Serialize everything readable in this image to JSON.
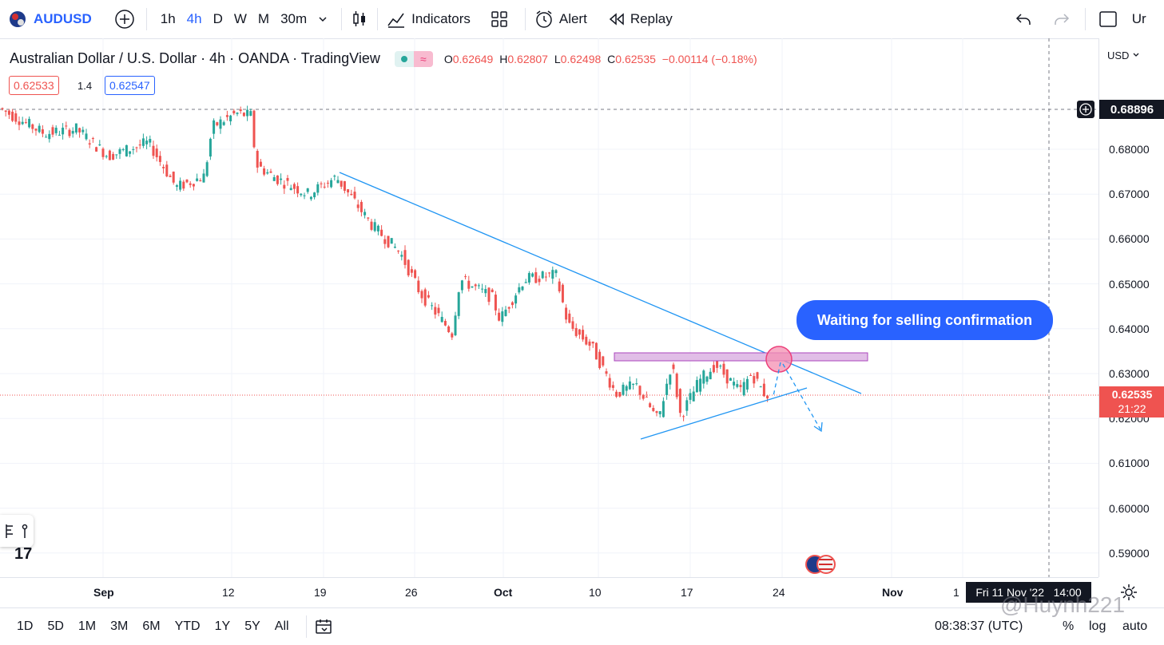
{
  "toolbar": {
    "symbol": "AUDUSD",
    "intervals": [
      "1h",
      "4h",
      "D",
      "W",
      "M",
      "30m"
    ],
    "active_interval": "4h",
    "indicators_label": "Indicators",
    "alert_label": "Alert",
    "replay_label": "Replay",
    "cut_label": "Ur"
  },
  "legend": {
    "title": "Australian Dollar / U.S. Dollar · 4h · OANDA · TradingView",
    "open_label": "O",
    "open": "0.62649",
    "high_label": "H",
    "high": "0.62807",
    "low_label": "L",
    "low": "0.62498",
    "close_label": "C",
    "close": "0.62535",
    "change": "−0.00114 (−0.18%)"
  },
  "quote": {
    "bid": "0.62533",
    "spread": "1.4",
    "ask": "0.62547"
  },
  "price_axis": {
    "currency": "USD",
    "ticks": [
      "0.68000",
      "0.67000",
      "0.66000",
      "0.65000",
      "0.64000",
      "0.63000",
      "0.62000",
      "0.61000",
      "0.60000",
      "0.59000"
    ],
    "crosshair_price": "0.68896",
    "last_price": "0.62535",
    "countdown": "21:22"
  },
  "time_axis": {
    "labels": [
      "Sep",
      "12",
      "19",
      "26",
      "Oct",
      "10",
      "17",
      "24",
      "Nov",
      "1"
    ],
    "crosshair_time": "Fri 11 Nov '22   14:00"
  },
  "annotation": {
    "callout": "Waiting for selling confirmation"
  },
  "bottombar": {
    "ranges": [
      "1D",
      "5D",
      "1M",
      "3M",
      "6M",
      "YTD",
      "1Y",
      "5Y",
      "All"
    ],
    "clock": "08:38:37 (UTC)",
    "percent": "%",
    "log": "log",
    "auto": "auto",
    "watermark": "@Huynh221"
  },
  "colors": {
    "up": "#26a69a",
    "down": "#ef5350",
    "accent": "#2962ff",
    "trendline": "#2196f3"
  }
}
